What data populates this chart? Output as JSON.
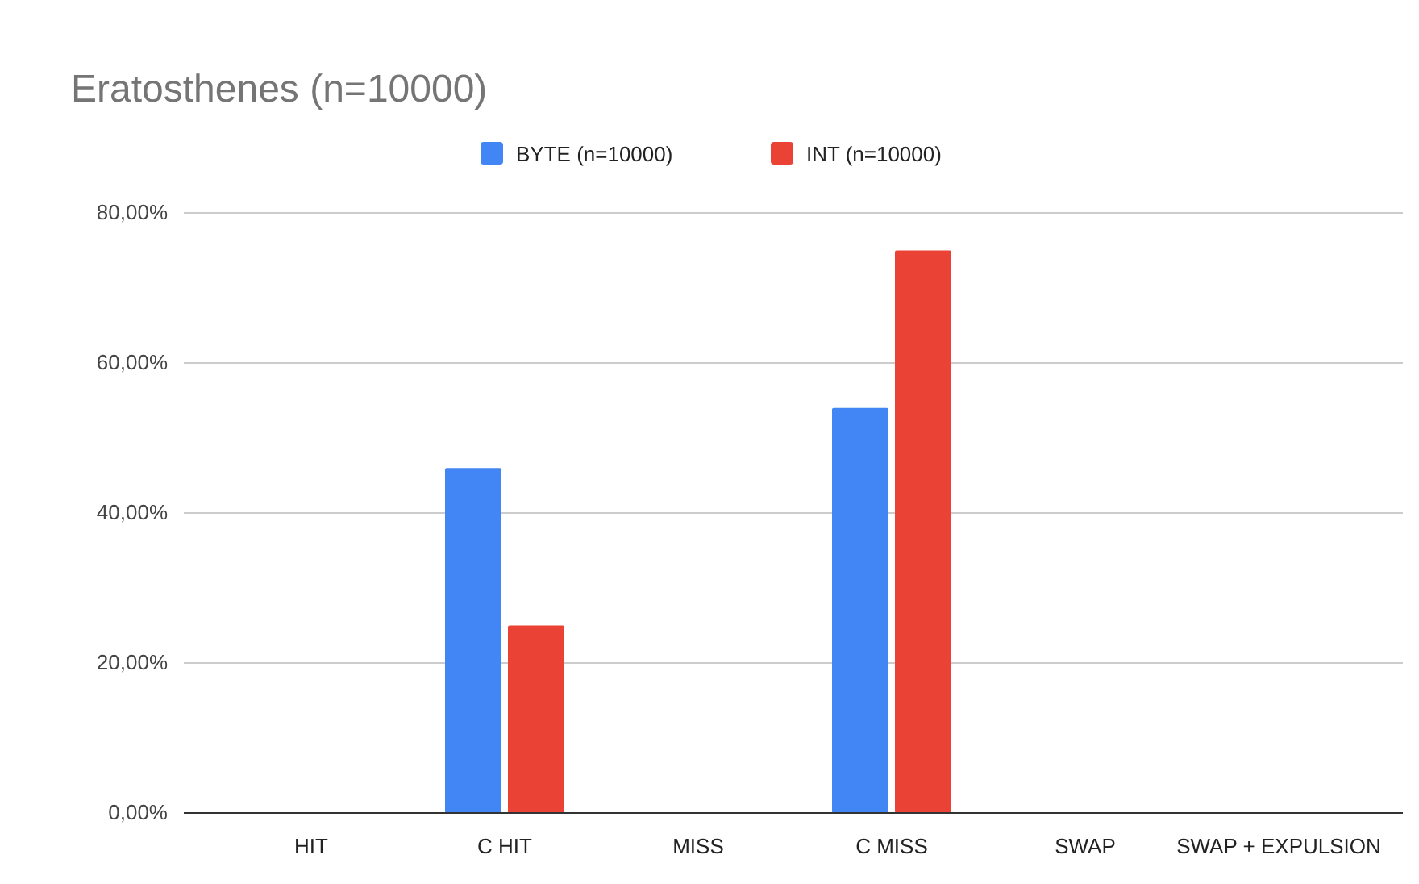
{
  "chart_data": {
    "type": "bar",
    "title": "Eratosthenes (n=10000)",
    "categories": [
      "HIT",
      "C HIT",
      "MISS",
      "C MISS",
      "SWAP",
      "SWAP + EXPULSION"
    ],
    "series": [
      {
        "name": "BYTE (n=10000)",
        "color": "#4285f4",
        "values": [
          0,
          46,
          0,
          54,
          0,
          0
        ]
      },
      {
        "name": "INT (n=10000)",
        "color": "#ea4335",
        "values": [
          0,
          25,
          0,
          75,
          0,
          0
        ]
      }
    ],
    "ylim": [
      0,
      80
    ],
    "yticks": [
      {
        "value": 0,
        "label": "0,00%"
      },
      {
        "value": 20,
        "label": "20,00%"
      },
      {
        "value": 40,
        "label": "40,00%"
      },
      {
        "value": 60,
        "label": "60,00%"
      },
      {
        "value": 80,
        "label": "80,00%"
      }
    ],
    "grid": "y",
    "legend": "top"
  }
}
